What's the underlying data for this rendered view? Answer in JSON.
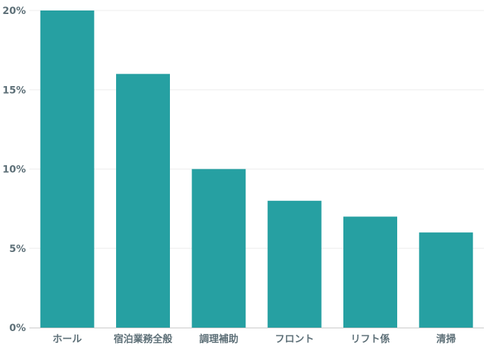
{
  "chart_data": {
    "type": "bar",
    "categories": [
      "ホール",
      "宿泊業務全般",
      "調理補助",
      "フロント",
      "リフト係",
      "清掃"
    ],
    "values": [
      20,
      16,
      10,
      8,
      7,
      6
    ],
    "title": "",
    "xlabel": "",
    "ylabel": "",
    "ylim": [
      0,
      20
    ],
    "yticks": [
      0,
      5,
      10,
      15,
      20
    ],
    "ytick_labels": [
      "0%",
      "5%",
      "10%",
      "15%",
      "20%"
    ],
    "grid": true,
    "legend": "none",
    "bar_color": "#26a0a2"
  }
}
